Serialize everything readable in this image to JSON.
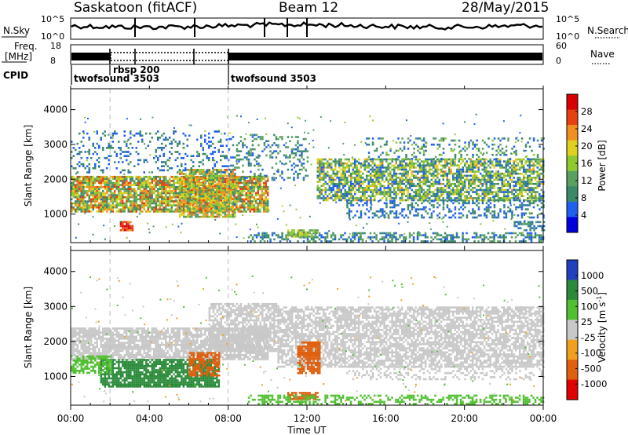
{
  "header": {
    "title": "Saskatoon (fitACF)",
    "beam": "Beam 12",
    "date": "28/May/2015"
  },
  "strip_labels": {
    "nsky": "N.Sky",
    "nsearch": "N.Search",
    "freq_line1": "Freq.",
    "freq_line2": "[MHz]",
    "nave": "Nave",
    "cpid": "CPID",
    "nsky_ticks": [
      "10^5",
      "10^0"
    ],
    "nsearch_ticks": [
      "10^5",
      "10^0"
    ],
    "freq_ticks": [
      "18",
      "8"
    ],
    "nave_ticks": [
      "60",
      "0"
    ]
  },
  "cpid_segments": [
    {
      "label": "twofsound 3503",
      "start_hour": 0
    },
    {
      "label": "rbsp 200",
      "start_hour": 2
    },
    {
      "label": "twofsound 3503",
      "start_hour": 8
    }
  ],
  "colors": {
    "power_scale": [
      "#0000dd",
      "#2060ee",
      "#3a8a6a",
      "#5aa060",
      "#90c830",
      "#e0d020",
      "#f09020",
      "#e84010",
      "#d80000"
    ],
    "velocity_scale": [
      "#2040c0",
      "#2a8a3a",
      "#50c030",
      "#c8c8c8",
      "#f0a020",
      "#e06010",
      "#e00000"
    ],
    "background": "#ffffff"
  },
  "chart_data": [
    {
      "type": "heatmap",
      "title": "Power",
      "xlabel": "",
      "ylabel": "Slant Range [km]",
      "colorbar_label": "Power [dB]",
      "colorbar_ticks": [
        "28",
        "24",
        "20",
        "16",
        "12",
        "8",
        "4"
      ],
      "x_unit": "hours UT",
      "xlim": [
        0,
        24
      ],
      "ylim": [
        180,
        4600
      ],
      "y_ticks": [
        "4000",
        "3000",
        "2000",
        "1000"
      ],
      "features": [
        {
          "name": "main band",
          "t": [
            0,
            10
          ],
          "range_km": [
            1100,
            2100
          ],
          "power_db": [
            8,
            28
          ]
        },
        {
          "name": "far band",
          "t": [
            13,
            24
          ],
          "range_km": [
            1400,
            2600
          ],
          "power_db": [
            4,
            22
          ]
        },
        {
          "name": "ground scatter low",
          "t": [
            9,
            24
          ],
          "range_km": [
            200,
            500
          ],
          "power_db": [
            4,
            14
          ]
        },
        {
          "name": "strong patch",
          "t": [
            2.5,
            3
          ],
          "range_km": [
            550,
            800
          ],
          "power_db": [
            24,
            30
          ]
        }
      ]
    },
    {
      "type": "heatmap",
      "title": "Velocity",
      "xlabel": "Time UT",
      "ylabel": "Slant Range [km]",
      "colorbar_label": "Velocity [m s^-1]",
      "colorbar_ticks": [
        "1000",
        "500",
        "100",
        "25",
        "-25",
        "-100",
        "-500",
        "-1000"
      ],
      "x_unit": "hours UT",
      "xlim": [
        0,
        24
      ],
      "ylim": [
        180,
        4600
      ],
      "y_ticks": [
        "4000",
        "3000",
        "2000",
        "1000"
      ],
      "x_ticks": [
        "00:00",
        "04:00",
        "08:00",
        "12:00",
        "16:00",
        "20:00",
        "00:00"
      ],
      "features": [
        {
          "name": "ground scatter grey",
          "t": [
            0,
            24
          ],
          "range_km": [
            1300,
            3000
          ],
          "velocity": [
            -25,
            25
          ]
        },
        {
          "name": "green patch",
          "t": [
            2,
            7
          ],
          "range_km": [
            700,
            1500
          ],
          "velocity": [
            100,
            500
          ]
        },
        {
          "name": "orange patch",
          "t": [
            11.5,
            12.5
          ],
          "range_km": [
            1100,
            2000
          ],
          "velocity": [
            -500,
            -100
          ]
        }
      ]
    }
  ]
}
